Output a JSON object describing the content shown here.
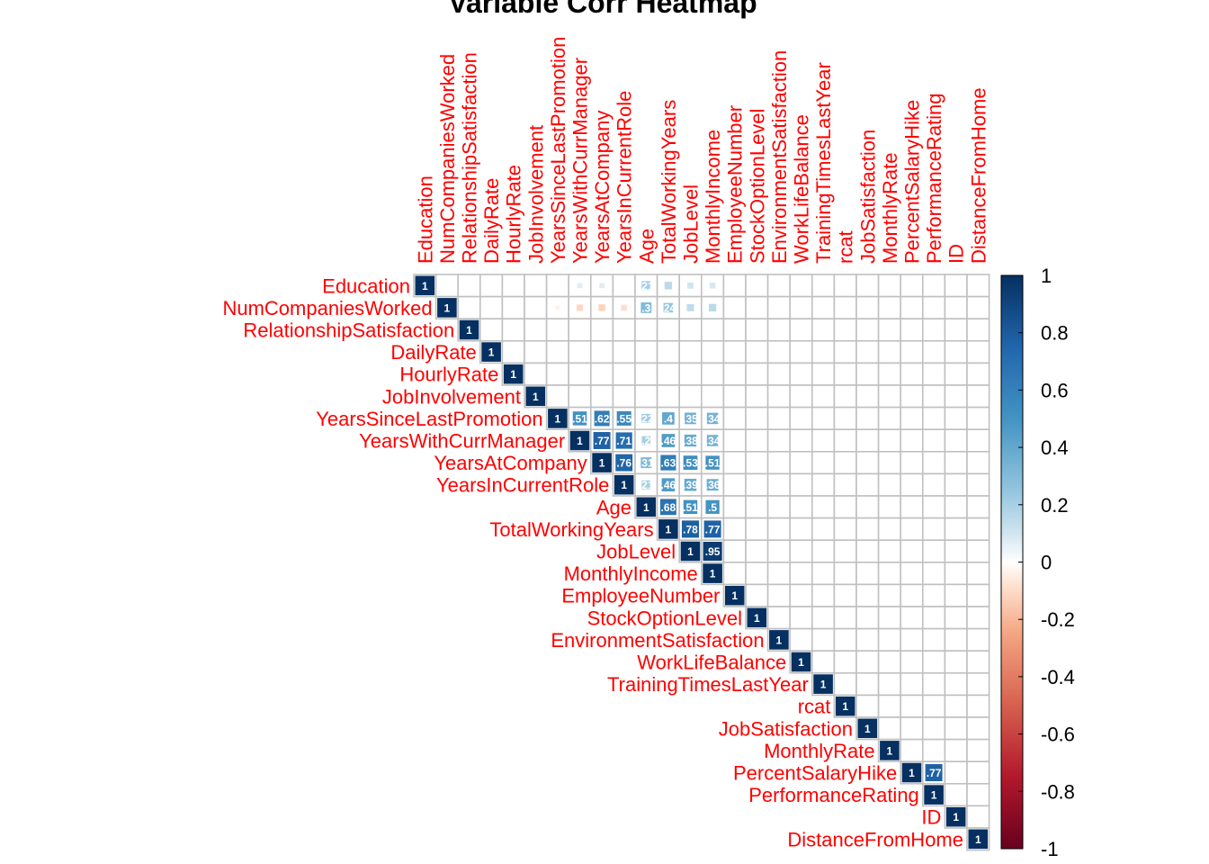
{
  "chart_data": {
    "type": "heatmap",
    "title": "Variable Corr Heatmap",
    "layout": "upper-triangle",
    "variables": [
      "Education",
      "NumCompaniesWorked",
      "RelationshipSatisfaction",
      "DailyRate",
      "HourlyRate",
      "JobInvolvement",
      "YearsSinceLastPromotion",
      "YearsWithCurrManager",
      "YearsAtCompany",
      "YearsInCurrentRole",
      "Age",
      "TotalWorkingYears",
      "JobLevel",
      "MonthlyIncome",
      "EmployeeNumber",
      "StockOptionLevel",
      "EnvironmentSatisfaction",
      "WorkLifeBalance",
      "TrainingTimesLastYear",
      "rcat",
      "JobSatisfaction",
      "MonthlyRate",
      "PercentSalaryHike",
      "PerformanceRating",
      "ID",
      "DistanceFromHome"
    ],
    "label_color": "#ff0000",
    "notable_correlations": [
      {
        "a": "Education",
        "b": "YearsWithCurrManager",
        "r": 0.07
      },
      {
        "a": "Education",
        "b": "YearsAtCompany",
        "r": 0.07
      },
      {
        "a": "Education",
        "b": "Age",
        "r": 0.21
      },
      {
        "a": "Education",
        "b": "TotalWorkingYears",
        "r": 0.15
      },
      {
        "a": "Education",
        "b": "JobLevel",
        "r": 0.1
      },
      {
        "a": "Education",
        "b": "MonthlyIncome",
        "r": 0.09
      },
      {
        "a": "NumCompaniesWorked",
        "b": "YearsSinceLastPromotion",
        "r": -0.04
      },
      {
        "a": "NumCompaniesWorked",
        "b": "YearsWithCurrManager",
        "r": -0.11
      },
      {
        "a": "NumCompaniesWorked",
        "b": "YearsAtCompany",
        "r": -0.12
      },
      {
        "a": "NumCompaniesWorked",
        "b": "YearsInCurrentRole",
        "r": -0.09
      },
      {
        "a": "NumCompaniesWorked",
        "b": "Age",
        "r": 0.3
      },
      {
        "a": "NumCompaniesWorked",
        "b": "TotalWorkingYears",
        "r": 0.24
      },
      {
        "a": "NumCompaniesWorked",
        "b": "JobLevel",
        "r": 0.14
      },
      {
        "a": "NumCompaniesWorked",
        "b": "MonthlyIncome",
        "r": 0.15
      },
      {
        "a": "YearsSinceLastPromotion",
        "b": "YearsWithCurrManager",
        "r": 0.51
      },
      {
        "a": "YearsSinceLastPromotion",
        "b": "YearsAtCompany",
        "r": 0.62
      },
      {
        "a": "YearsSinceLastPromotion",
        "b": "YearsInCurrentRole",
        "r": 0.55
      },
      {
        "a": "YearsSinceLastPromotion",
        "b": "Age",
        "r": 0.22
      },
      {
        "a": "YearsSinceLastPromotion",
        "b": "TotalWorkingYears",
        "r": 0.4
      },
      {
        "a": "YearsSinceLastPromotion",
        "b": "JobLevel",
        "r": 0.35
      },
      {
        "a": "YearsSinceLastPromotion",
        "b": "MonthlyIncome",
        "r": 0.34
      },
      {
        "a": "YearsWithCurrManager",
        "b": "YearsAtCompany",
        "r": 0.77
      },
      {
        "a": "YearsWithCurrManager",
        "b": "YearsInCurrentRole",
        "r": 0.71
      },
      {
        "a": "YearsWithCurrManager",
        "b": "Age",
        "r": 0.2
      },
      {
        "a": "YearsWithCurrManager",
        "b": "TotalWorkingYears",
        "r": 0.46
      },
      {
        "a": "YearsWithCurrManager",
        "b": "JobLevel",
        "r": 0.38
      },
      {
        "a": "YearsWithCurrManager",
        "b": "MonthlyIncome",
        "r": 0.34
      },
      {
        "a": "YearsAtCompany",
        "b": "YearsInCurrentRole",
        "r": 0.76
      },
      {
        "a": "YearsAtCompany",
        "b": "Age",
        "r": 0.31
      },
      {
        "a": "YearsAtCompany",
        "b": "TotalWorkingYears",
        "r": 0.63
      },
      {
        "a": "YearsAtCompany",
        "b": "JobLevel",
        "r": 0.53
      },
      {
        "a": "YearsAtCompany",
        "b": "MonthlyIncome",
        "r": 0.51
      },
      {
        "a": "YearsInCurrentRole",
        "b": "Age",
        "r": 0.21
      },
      {
        "a": "YearsInCurrentRole",
        "b": "TotalWorkingYears",
        "r": 0.46
      },
      {
        "a": "YearsInCurrentRole",
        "b": "JobLevel",
        "r": 0.39
      },
      {
        "a": "YearsInCurrentRole",
        "b": "MonthlyIncome",
        "r": 0.36
      },
      {
        "a": "Age",
        "b": "TotalWorkingYears",
        "r": 0.68
      },
      {
        "a": "Age",
        "b": "JobLevel",
        "r": 0.51
      },
      {
        "a": "Age",
        "b": "MonthlyIncome",
        "r": 0.5
      },
      {
        "a": "TotalWorkingYears",
        "b": "JobLevel",
        "r": 0.78
      },
      {
        "a": "TotalWorkingYears",
        "b": "MonthlyIncome",
        "r": 0.77
      },
      {
        "a": "JobLevel",
        "b": "MonthlyIncome",
        "r": 0.95
      },
      {
        "a": "PercentSalaryHike",
        "b": "PerformanceRating",
        "r": 0.77
      }
    ],
    "colorbar": {
      "range": [
        -1,
        1
      ],
      "ticks": [
        "1",
        "0.8",
        "0.6",
        "0.4",
        "0.2",
        "0",
        "-0.2",
        "-0.4",
        "-0.6",
        "-0.8",
        "-1"
      ],
      "low_color": "#67001f",
      "mid_color": "#ffffff",
      "high_color": "#053061"
    }
  }
}
